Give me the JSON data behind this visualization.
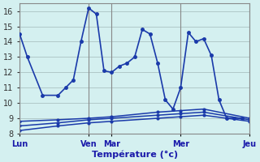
{
  "background_color": "#d4f0f0",
  "grid_color": "#b0c8c8",
  "line_color": "#1a3aaa",
  "ylim": [
    8,
    16.5
  ],
  "yticks": [
    8,
    9,
    10,
    11,
    12,
    13,
    14,
    15,
    16
  ],
  "xlabel": "Température (°c)",
  "day_labels": [
    "Lun",
    "Ven",
    "Mar",
    "Mer",
    "Jeu"
  ],
  "day_positions": [
    0,
    9,
    12,
    21,
    30
  ],
  "series1_x": [
    0,
    1,
    3,
    5,
    6,
    7,
    8,
    9,
    10,
    11,
    12,
    13,
    14,
    15,
    16,
    17,
    18,
    19,
    20,
    21,
    22,
    23,
    24,
    25,
    26,
    27,
    28,
    29
  ],
  "series1_y": [
    14.5,
    13.0,
    10.5,
    10.5,
    11.0,
    11.5,
    14.0,
    16.2,
    15.8,
    12.1,
    12.0,
    12.4,
    12.6,
    13.0,
    14.8,
    14.5,
    12.6,
    10.2,
    9.6,
    11.0,
    14.6,
    14.0,
    14.2,
    13.1,
    10.2,
    9.0,
    9.0,
    9.0
  ],
  "series2_x": [
    0,
    5,
    9,
    12,
    18,
    21,
    24,
    30
  ],
  "series2_y": [
    8.8,
    8.9,
    9.0,
    9.1,
    9.4,
    9.5,
    9.6,
    9.0
  ],
  "series3_x": [
    0,
    5,
    9,
    12,
    18,
    21,
    24,
    30
  ],
  "series3_y": [
    8.5,
    8.7,
    8.9,
    9.0,
    9.2,
    9.3,
    9.4,
    8.9
  ],
  "series4_x": [
    0,
    5,
    9,
    12,
    18,
    21,
    24,
    30
  ],
  "series4_y": [
    8.2,
    8.5,
    8.7,
    8.8,
    9.0,
    9.1,
    9.2,
    8.8
  ],
  "vline_positions": [
    0,
    9,
    12,
    21,
    30
  ]
}
